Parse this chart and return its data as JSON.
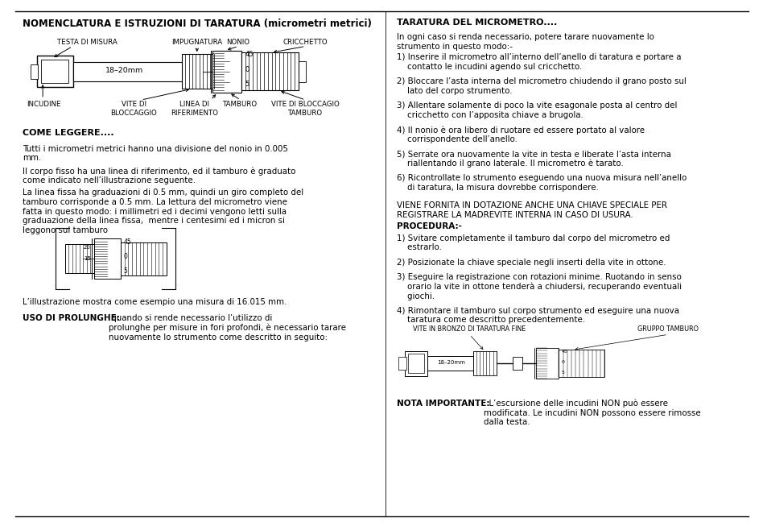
{
  "bg_color": "#ffffff",
  "left_title": "NOMENCLATURA E ISTRUZIONI DI TARATURA (micrometri metrici)",
  "come_leggere_title": "COME LEGGERE....",
  "come_leggere_p1": "Tutti i micrometri metrici hanno una divisione del nonio in 0.005\nmm.",
  "come_leggere_p2": "Il corpo fisso ha una linea di riferimento, ed il tamburo è graduato\ncome indicato nell’illustrazione seguente.",
  "come_leggere_p3": "La linea fissa ha graduazioni di 0.5 mm, quindi un giro completo del\ntamburo corrisponde a 0.5 mm. La lettura del micrometro viene\nfatta in questo modo: i millimetri ed i decimi vengono letti sulla\ngraduazione della linea fissa,  mentre i centesimi ed i micron si\nleggono sul tamburo",
  "come_leggere_caption": "L’illustrazione mostra come esempio una misura di 16.015 mm.",
  "uso_prolunghe_bold": "USO DI PROLUNGHE:",
  "uso_prolunghe_text": " quando si rende necessario l’utilizzo di\nprolunghe per misure in fori profondi, è necessario tarare\nnuovamente lo strumento come descritto in seguito:",
  "right_title": "TARATURA DEL MICROMETRO....",
  "right_intro": "In ogni caso si renda necessario, potere tarare nuovamente lo\nstrumento in questo modo:-",
  "right_items": [
    "1) Inserire il micrometro all’interno dell’anello di taratura e portare a\n    contatto le incudini agendo sul cricchetto.",
    "2) Bloccare l’asta interna del micrometro chiudendo il grano posto sul\n    lato del corpo strumento.",
    "3) Allentare solamente di poco la vite esagonale posta al centro del\n    cricchetto con l’apposita chiave a brugola.",
    "4) Il nonio è ora libero di ruotare ed essere portato al valore\n    corrispondente dell’anello.",
    "5) Serrate ora nuovamente la vite in testa e liberate l’asta interna\n    riallentando il grano laterale. Il micrometro è tarato.",
    "6) Ricontrollate lo strumento eseguendo una nuova misura nell’anello\n    di taratura, la misura dovrebbe corrispondere."
  ],
  "viene_fornita": "VIENE FORNITA IN DOTAZIONE ANCHE UNA CHIAVE SPECIALE PER\nREGISTRARE LA MADREVITE INTERNA IN CASO DI USURA.",
  "procedura_title": "PROCEDURA:-",
  "procedura_items": [
    "1) Svitare completamente il tamburo dal corpo del micrometro ed\n    estrarlo.",
    "2) Posizionate la chiave speciale negli inserti della vite in ottone.",
    "3) Eseguire la registrazione con rotazioni minime. Ruotando in senso\n    orario la vite in ottone tenderà a chiudersi, recuperando eventuali\n    giochi.",
    "4) Rimontare il tamburo sul corpo strumento ed eseguire una nuova\n    taratura come descritto precedentemente."
  ],
  "nota_bold": "NOTA IMPORTANTE:",
  "nota_text": "  L’escursione delle incudini NON può essere\nmodificata. Le incudini NON possono essere rimosse\ndalla testa.",
  "vite_bronzo_label": "VITE IN BRONZO DI TARATURA FINE",
  "gruppo_tamburo_label": "GRUPPO TAMBURO"
}
